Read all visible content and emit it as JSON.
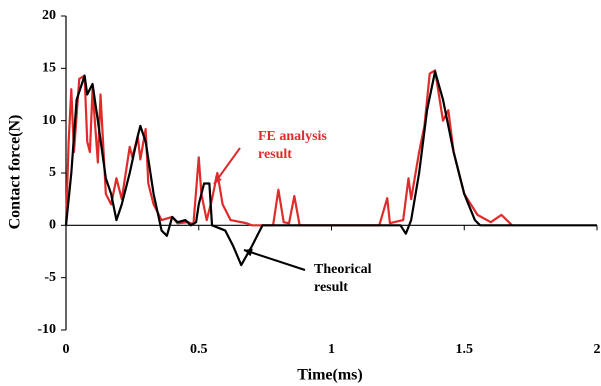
{
  "chart_data": {
    "type": "line",
    "xlabel": "Time(ms)",
    "ylabel": "Contact force(N)",
    "xlim": [
      0,
      2
    ],
    "xticks": [
      0,
      0.5,
      1,
      1.5,
      2
    ],
    "ylim": [
      -10,
      20
    ],
    "yticks": [
      -10,
      -5,
      0,
      5,
      10,
      15,
      20
    ],
    "grid": false,
    "series": [
      {
        "color": "#e02b2b",
        "x": [
          0,
          0.01,
          0.02,
          0.03,
          0.05,
          0.07,
          0.08,
          0.09,
          0.1,
          0.12,
          0.13,
          0.15,
          0.17,
          0.19,
          0.21,
          0.24,
          0.25,
          0.27,
          0.28,
          0.3,
          0.31,
          0.33,
          0.36,
          0.4,
          0.42,
          0.46,
          0.48,
          0.5,
          0.51,
          0.53,
          0.55,
          0.57,
          0.59,
          0.62,
          0.68,
          0.7,
          0.78,
          0.8,
          0.82,
          0.84,
          0.86,
          0.88,
          1.18,
          1.21,
          1.22,
          1.27,
          1.29,
          1.3,
          1.33,
          1.35,
          1.37,
          1.39,
          1.42,
          1.44,
          1.46,
          1.5,
          1.55,
          1.6,
          1.64,
          1.68
        ],
        "values": [
          0,
          8,
          13,
          7,
          14,
          14.3,
          8,
          7,
          13,
          6,
          12.5,
          3,
          2,
          4.5,
          2.5,
          7.5,
          6.5,
          8.5,
          6.3,
          9.2,
          4,
          2,
          0.5,
          0.8,
          0.2,
          0.3,
          0.1,
          6.5,
          3,
          0.5,
          2.5,
          5,
          2,
          0.5,
          0.2,
          0,
          0,
          3.4,
          0.3,
          0.2,
          2.8,
          0,
          0,
          2.6,
          0.2,
          0.5,
          4.5,
          2.5,
          7,
          9.5,
          14.5,
          14.8,
          10,
          11,
          7,
          3,
          1,
          0.3,
          1,
          0
        ]
      },
      {
        "color": "#000000",
        "x": [
          0,
          0.02,
          0.04,
          0.07,
          0.08,
          0.1,
          0.12,
          0.15,
          0.17,
          0.19,
          0.21,
          0.24,
          0.27,
          0.28,
          0.3,
          0.33,
          0.36,
          0.38,
          0.4,
          0.42,
          0.45,
          0.47,
          0.49,
          0.5,
          0.52,
          0.54,
          0.55,
          0.6,
          0.63,
          0.66,
          0.7,
          0.72,
          0.74,
          1.26,
          1.28,
          1.3,
          1.33,
          1.36,
          1.39,
          1.42,
          1.46,
          1.5,
          1.54,
          1.56,
          2
        ],
        "values": [
          0,
          5,
          12,
          14.3,
          12.5,
          13.5,
          10,
          4.5,
          3,
          0.5,
          2,
          5,
          8.5,
          9.5,
          8,
          3,
          -0.5,
          -1,
          0.8,
          0.3,
          0.5,
          0,
          0.3,
          2,
          4,
          4,
          0,
          -0.5,
          -2,
          -3.8,
          -2,
          -1,
          0,
          0,
          -0.8,
          0.5,
          5,
          11,
          14.7,
          12,
          7,
          3,
          0.5,
          0,
          0
        ]
      }
    ],
    "annotations": [
      {
        "lines": [
          "FE analysis",
          "result"
        ],
        "color": "#e02b2b"
      },
      {
        "lines": [
          "Theorical",
          "result"
        ],
        "color": "#000000"
      }
    ]
  }
}
